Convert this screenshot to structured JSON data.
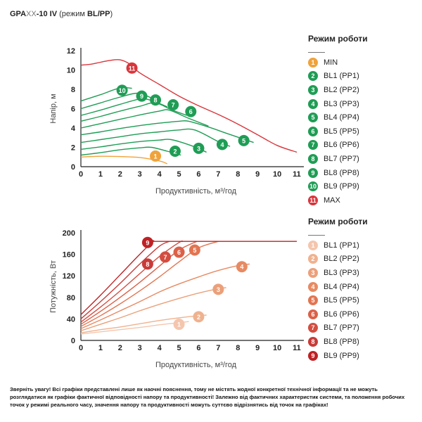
{
  "title": {
    "model_prefix": "GPA",
    "model_xx": "XX",
    "model_suffix": "-10 IV",
    "mode_open": " (режим ",
    "mode_bold": "BL/PP",
    "mode_close": ")"
  },
  "colors": {
    "axis": "#222222",
    "head_palette": [
      "#f0a33a",
      "#1f9d55",
      "#1f9d55",
      "#1f9d55",
      "#1f9d55",
      "#1f9d55",
      "#1f9d55",
      "#1f9d55",
      "#1f9d55",
      "#1f9d55",
      "#d9353b"
    ],
    "power_palette": [
      "#f4c6ad",
      "#efb28f",
      "#eba07a",
      "#e78a62",
      "#e27551",
      "#dc6048",
      "#d44d40",
      "#c83b38",
      "#bf2124"
    ]
  },
  "legend_head": {
    "title": "Режим роботи",
    "items": [
      {
        "num": "1",
        "label": "MIN"
      },
      {
        "num": "2",
        "label": "BL1 (PP1)"
      },
      {
        "num": "3",
        "label": "BL2 (PP2)"
      },
      {
        "num": "4",
        "label": "BL3 (PP3)"
      },
      {
        "num": "5",
        "label": "BL4 (PP4)"
      },
      {
        "num": "6",
        "label": "BL5 (PP5)"
      },
      {
        "num": "7",
        "label": "BL6 (PP6)"
      },
      {
        "num": "8",
        "label": "BL7 (PP7)"
      },
      {
        "num": "9",
        "label": "BL8 (PP8)"
      },
      {
        "num": "10",
        "label": "BL9 (PP9)"
      },
      {
        "num": "11",
        "label": "MAX"
      }
    ]
  },
  "legend_power": {
    "title": "Режим роботи",
    "items": [
      {
        "num": "1",
        "label": "BL1 (PP1)"
      },
      {
        "num": "2",
        "label": "BL2 (PP2)"
      },
      {
        "num": "3",
        "label": "BL3 (PP3)"
      },
      {
        "num": "4",
        "label": "BL4 (PP4)"
      },
      {
        "num": "5",
        "label": "BL5 (PP5)"
      },
      {
        "num": "6",
        "label": "BL6 (PP6)"
      },
      {
        "num": "7",
        "label": "BL7 (PP7)"
      },
      {
        "num": "8",
        "label": "BL8 (PP8)"
      },
      {
        "num": "9",
        "label": "BL9 (PP9)"
      }
    ]
  },
  "note": "Зверніть увагу! Всі графіки представлені лише як наочні пояснення, тому не містять жодної конкретної технічної інформації та не можуть розглядатися як графіки фактичної відповідності напору та продуктивності! Залежно від фактичних характеристик системи, та положення робочих точок у режимі реального часу, значення напору та продуктивності можуть суттєво відрізнятись від точок на графіках!",
  "chart_data": [
    {
      "type": "line",
      "xlabel": "Продуктивність, м³/год",
      "ylabel": "Напір, м",
      "xlim": [
        0,
        11
      ],
      "ylim": [
        0,
        12
      ],
      "xticks": [
        0,
        1,
        2,
        3,
        4,
        5,
        6,
        7,
        8,
        9,
        10,
        11
      ],
      "yticks": [
        0,
        2,
        4,
        6,
        8,
        10,
        12
      ],
      "grid": false,
      "legend_position": "right",
      "series": [
        {
          "name": "MIN",
          "marker": "1",
          "marker_xy": [
            3.8,
            1.1
          ],
          "x": [
            0,
            1,
            2,
            3,
            4,
            4.4
          ],
          "y": [
            1,
            1.08,
            1.05,
            0.95,
            0.6,
            0.3
          ]
        },
        {
          "name": "BL1 (PP1)",
          "marker": "2",
          "marker_xy": [
            4.8,
            1.6
          ],
          "x": [
            0,
            1,
            2,
            3,
            3.6,
            4.4,
            5.1
          ],
          "y": [
            1.2,
            1.45,
            1.75,
            1.95,
            2.0,
            1.6,
            1.2
          ]
        },
        {
          "name": "BL2 (PP2)",
          "marker": "3",
          "marker_xy": [
            6.0,
            1.9
          ],
          "x": [
            0,
            1,
            2,
            3,
            4,
            4.6,
            5.6,
            6.4
          ],
          "y": [
            1.8,
            2.05,
            2.35,
            2.6,
            2.75,
            2.8,
            2.2,
            1.5
          ]
        },
        {
          "name": "BL3 (PP3)",
          "marker": "4",
          "marker_xy": [
            7.2,
            2.3
          ],
          "x": [
            0,
            1,
            2,
            3,
            4,
            5,
            5.8,
            7.0,
            7.6
          ],
          "y": [
            2.5,
            2.8,
            3.1,
            3.4,
            3.6,
            3.8,
            3.8,
            2.6,
            2.1
          ]
        },
        {
          "name": "BL4 (PP4)",
          "marker": "5",
          "marker_xy": [
            8.3,
            2.7
          ],
          "x": [
            0,
            1,
            2,
            3,
            4,
            5,
            5.5,
            6.5,
            7.5,
            8.8
          ],
          "y": [
            3.3,
            3.6,
            3.95,
            4.25,
            4.5,
            4.7,
            4.7,
            4.1,
            3.4,
            2.5
          ]
        },
        {
          "name": "BL5 (PP5)",
          "marker": "6",
          "marker_xy": [
            5.6,
            5.7
          ],
          "x": [
            0,
            1,
            2,
            3,
            4,
            4.5,
            5.5,
            6.5
          ],
          "y": [
            4.0,
            4.45,
            4.9,
            5.35,
            5.75,
            5.85,
            5.0,
            4.2
          ]
        },
        {
          "name": "BL6 (PP6)",
          "marker": "7",
          "marker_xy": [
            4.7,
            6.4
          ],
          "x": [
            0,
            1,
            2,
            3,
            3.8,
            4.6,
            5.4
          ],
          "y": [
            4.7,
            5.2,
            5.75,
            6.25,
            6.6,
            5.9,
            5.3
          ]
        },
        {
          "name": "BL7 (PP7)",
          "marker": "8",
          "marker_xy": [
            3.8,
            6.9
          ],
          "x": [
            0,
            1,
            2,
            3,
            3.5,
            4.4
          ],
          "y": [
            5.3,
            5.85,
            6.45,
            7.0,
            6.9,
            6.2
          ]
        },
        {
          "name": "BL8 (PP8)",
          "marker": "9",
          "marker_xy": [
            3.1,
            7.3
          ],
          "x": [
            0,
            1,
            2,
            2.9,
            3.6
          ],
          "y": [
            6.0,
            6.6,
            7.2,
            7.6,
            7.1
          ]
        },
        {
          "name": "BL9 (PP9)",
          "marker": "10",
          "marker_xy": [
            2.1,
            7.9
          ],
          "x": [
            0,
            1,
            2,
            2.6
          ],
          "y": [
            6.8,
            7.45,
            8.15,
            8.1
          ]
        },
        {
          "name": "MAX",
          "marker": "11",
          "marker_xy": [
            2.6,
            10.2
          ],
          "x": [
            0,
            0.5,
            1,
            1.5,
            2,
            2.5,
            3,
            4,
            5,
            6,
            7,
            8,
            9,
            10,
            11
          ],
          "y": [
            10.5,
            10.6,
            10.8,
            11.0,
            11.05,
            10.6,
            9.7,
            8.5,
            7.3,
            6.3,
            5.4,
            4.4,
            3.3,
            2.2,
            1.5
          ]
        }
      ]
    },
    {
      "type": "line",
      "xlabel": "Продуктивність, м³/год",
      "ylabel": "Потужність, Вт",
      "xlim": [
        0,
        11
      ],
      "ylim": [
        0,
        200
      ],
      "xticks": [
        0,
        1,
        2,
        3,
        4,
        5,
        6,
        7,
        8,
        9,
        10,
        11
      ],
      "yticks": [
        0,
        40,
        80,
        120,
        160,
        200
      ],
      "grid": false,
      "legend_position": "right",
      "series": [
        {
          "name": "BL1 (PP1)",
          "marker": "1",
          "marker_xy": [
            5.0,
            30
          ],
          "x": [
            0,
            1,
            2,
            3,
            4,
            5,
            5.5
          ],
          "y": [
            12,
            16,
            20,
            24,
            29,
            33,
            35
          ]
        },
        {
          "name": "BL2 (PP2)",
          "marker": "2",
          "marker_xy": [
            6.0,
            44
          ],
          "x": [
            0,
            1,
            2,
            3,
            4,
            5,
            6,
            6.4
          ],
          "y": [
            14,
            20,
            25,
            31,
            37,
            42,
            46,
            47
          ]
        },
        {
          "name": "BL3 (PP3)",
          "marker": "3",
          "marker_xy": [
            7.0,
            95
          ],
          "x": [
            0,
            1,
            2,
            3,
            4,
            5,
            6,
            7,
            7.4
          ],
          "y": [
            18,
            30,
            42,
            55,
            67,
            78,
            88,
            96,
            98
          ]
        },
        {
          "name": "BL4 (PP4)",
          "marker": "4",
          "marker_xy": [
            8.2,
            137
          ],
          "x": [
            0,
            1,
            2,
            3,
            4,
            5,
            6,
            7,
            8,
            8.6
          ],
          "y": [
            22,
            38,
            55,
            72,
            90,
            105,
            118,
            130,
            139,
            142
          ]
        },
        {
          "name": "BL5 (PP5)",
          "marker": "5",
          "marker_xy": [
            5.8,
            168
          ],
          "x": [
            0,
            1,
            2,
            3,
            4,
            5,
            6,
            7
          ],
          "y": [
            26,
            46,
            68,
            92,
            118,
            146,
            172,
            184
          ]
        },
        {
          "name": "BL6 (PP6)",
          "marker": "6",
          "marker_xy": [
            5.0,
            164
          ],
          "x": [
            0,
            1,
            2,
            3,
            4,
            5,
            5.9
          ],
          "y": [
            30,
            54,
            80,
            108,
            138,
            168,
            184
          ]
        },
        {
          "name": "BL7 (PP7)",
          "marker": "7",
          "marker_xy": [
            4.3,
            155
          ],
          "x": [
            0,
            1,
            2,
            3,
            4,
            5,
            5.2
          ],
          "y": [
            34,
            62,
            92,
            124,
            156,
            182,
            184
          ]
        },
        {
          "name": "BL8 (PP8)",
          "marker": "8",
          "marker_xy": [
            3.4,
            142
          ],
          "x": [
            0,
            1,
            2,
            3,
            4,
            4.5
          ],
          "y": [
            40,
            72,
            106,
            142,
            175,
            184
          ]
        },
        {
          "name": "BL9 (PP9)",
          "marker": "9",
          "marker_xy": [
            3.4,
            182
          ],
          "x": [
            0,
            1,
            2,
            3,
            3.7,
            4,
            11
          ],
          "y": [
            48,
            84,
            122,
            160,
            184,
            184,
            184
          ]
        }
      ]
    }
  ]
}
